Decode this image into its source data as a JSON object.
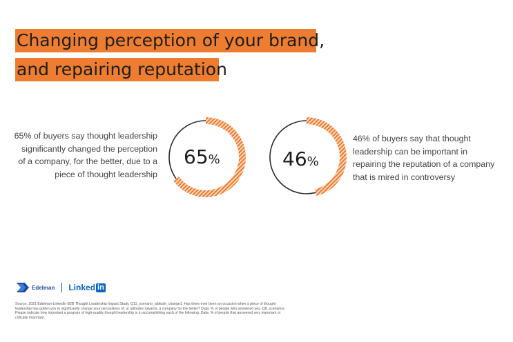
{
  "title": {
    "line1": "Changing perception of your brand,",
    "line2": "and repairing reputation"
  },
  "colors": {
    "accent": "#ee7d31",
    "ring_outline": "#2a2a2a"
  },
  "stats": [
    {
      "value": "65",
      "unit": "%",
      "fraction": 0.65,
      "text": "65% of buyers say thought leadership significantly changed the perception of a company, for the better, due to a piece of thought leadership"
    },
    {
      "value": "46",
      "unit": "%",
      "fraction": 0.46,
      "text": "46% of buyers say that thought leadership can be important in repairing the reputation of a company that is mired in controversy"
    }
  ],
  "logos": {
    "edelman": "Edelman",
    "linkedin_word": "Linked",
    "linkedin_in": "in"
  },
  "source": "Source: 2021 Edelman-LinkedIn B2B Thought Leadership Impact Study. Q11_scenario_attitude_change1: Has there ever been an occasion when a piece of thought leadership has gotten you to significantly change your perceptions of, or attitudes towards, a company for the better? Data: % of people who answered yes. Q8_scenarios: Please indicate how important a program of high-quality thought leadership is in accomplishing each of the following. Data: % of people that answered very important or critically important."
}
